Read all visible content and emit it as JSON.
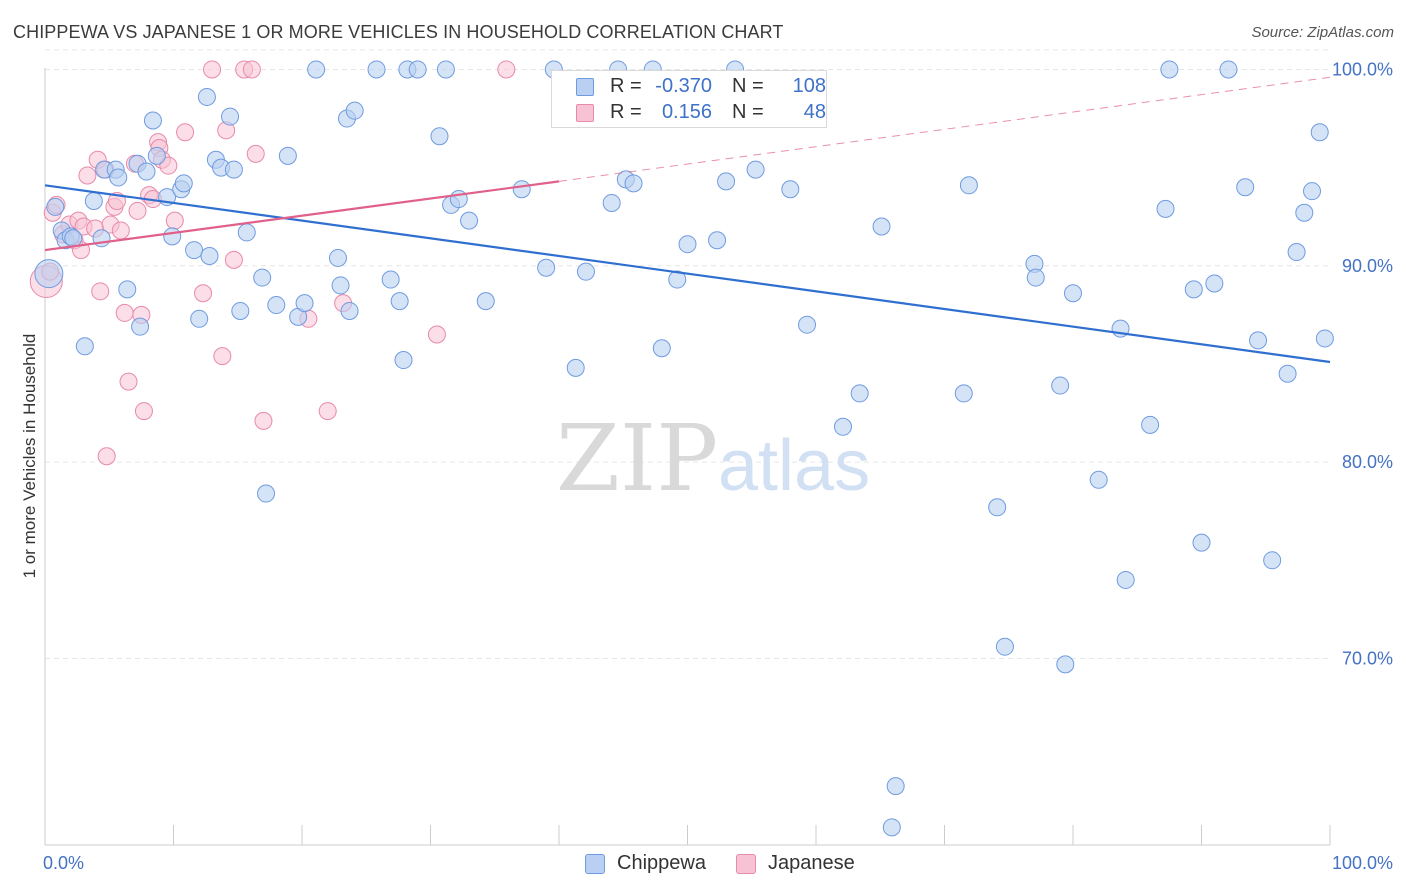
{
  "header": {
    "title": "CHIPPEWA VS JAPANESE 1 OR MORE VEHICLES IN HOUSEHOLD CORRELATION CHART",
    "source": "Source: ZipAtlas.com"
  },
  "legend": {
    "rows": [
      {
        "r_label": "R =",
        "r_value": "-0.370",
        "n_label": "N =",
        "n_value": "108"
      },
      {
        "r_label": "R =",
        "r_value": "0.156",
        "n_label": "N =",
        "n_value": "48"
      }
    ]
  },
  "watermark": {
    "zip": "ZIP",
    "atlas": "atlas"
  },
  "colors": {
    "chippewa_fill": "#b9d0f2",
    "chippewa_stroke": "#6f9be0",
    "chippewa_line": "#2f6fd0",
    "japanese_fill": "#f7c3d4",
    "japanese_stroke": "#e88aaa",
    "japanese_line": "#e0608a",
    "tick_label": "#4472c4",
    "grid": "#e6e6e6"
  },
  "chart_data": {
    "type": "scatter",
    "title": "CHIPPEWA VS JAPANESE 1 OR MORE VEHICLES IN HOUSEHOLD CORRELATION CHART",
    "xlabel": "",
    "ylabel": "1 or more Vehicles in Household",
    "xlim": [
      0,
      100
    ],
    "ylim": [
      60.5,
      101.5
    ],
    "x_tick_labels": [
      "0.0%",
      "100.0%"
    ],
    "y_ticks": [
      70,
      80,
      90,
      100
    ],
    "y_tick_labels": [
      "70.0%",
      "80.0%",
      "90.0%",
      "100.0%"
    ],
    "grid": true,
    "legend_position": "top-center",
    "series": [
      {
        "name": "Chippewa",
        "r": -0.37,
        "n": 108,
        "trend": {
          "x": [
            0,
            100
          ],
          "y": [
            94.1,
            85.1
          ]
        },
        "points": [
          [
            0.3,
            89.6
          ],
          [
            0.8,
            93.0
          ],
          [
            1.3,
            91.8
          ],
          [
            1.6,
            91.3
          ],
          [
            2.0,
            91.5
          ],
          [
            2.2,
            91.4
          ],
          [
            3.1,
            85.9
          ],
          [
            3.8,
            93.3
          ],
          [
            4.4,
            91.4
          ],
          [
            4.6,
            94.9
          ],
          [
            5.5,
            94.9
          ],
          [
            5.7,
            94.5
          ],
          [
            6.4,
            88.8
          ],
          [
            7.2,
            95.2
          ],
          [
            7.4,
            86.9
          ],
          [
            7.9,
            94.8
          ],
          [
            8.4,
            97.4
          ],
          [
            8.7,
            95.6
          ],
          [
            9.5,
            93.5
          ],
          [
            9.9,
            91.5
          ],
          [
            10.6,
            93.9
          ],
          [
            10.8,
            94.2
          ],
          [
            11.6,
            90.8
          ],
          [
            12.0,
            87.3
          ],
          [
            12.6,
            98.6
          ],
          [
            12.8,
            90.5
          ],
          [
            13.3,
            95.4
          ],
          [
            13.7,
            95.0
          ],
          [
            14.4,
            97.6
          ],
          [
            14.7,
            94.9
          ],
          [
            15.2,
            87.7
          ],
          [
            15.7,
            91.7
          ],
          [
            16.9,
            89.4
          ],
          [
            17.2,
            78.4
          ],
          [
            18.0,
            88.0
          ],
          [
            18.9,
            95.6
          ],
          [
            19.7,
            87.4
          ],
          [
            20.2,
            88.1
          ],
          [
            21.1,
            100.0
          ],
          [
            22.8,
            90.4
          ],
          [
            23.0,
            89.0
          ],
          [
            23.5,
            97.5
          ],
          [
            23.7,
            87.7
          ],
          [
            24.1,
            97.9
          ],
          [
            25.8,
            100.0
          ],
          [
            26.9,
            89.3
          ],
          [
            27.6,
            88.2
          ],
          [
            27.9,
            85.2
          ],
          [
            28.2,
            100.0
          ],
          [
            29.0,
            100.0
          ],
          [
            30.7,
            96.6
          ],
          [
            31.2,
            100.0
          ],
          [
            31.6,
            93.1
          ],
          [
            32.2,
            93.4
          ],
          [
            33.0,
            92.3
          ],
          [
            34.3,
            88.2
          ],
          [
            37.1,
            93.9
          ],
          [
            39.0,
            89.9
          ],
          [
            39.6,
            100.0
          ],
          [
            41.3,
            84.8
          ],
          [
            42.1,
            89.7
          ],
          [
            44.1,
            93.2
          ],
          [
            44.6,
            100.0
          ],
          [
            45.2,
            94.4
          ],
          [
            45.8,
            94.2
          ],
          [
            47.3,
            100.0
          ],
          [
            48.0,
            85.8
          ],
          [
            49.2,
            89.3
          ],
          [
            50.0,
            91.1
          ],
          [
            52.3,
            91.3
          ],
          [
            53.0,
            94.3
          ],
          [
            53.7,
            100.0
          ],
          [
            55.3,
            94.9
          ],
          [
            58.0,
            93.9
          ],
          [
            59.3,
            87.0
          ],
          [
            62.1,
            81.8
          ],
          [
            63.4,
            83.5
          ],
          [
            65.1,
            92.0
          ],
          [
            65.9,
            61.4
          ],
          [
            66.2,
            63.5
          ],
          [
            71.5,
            83.5
          ],
          [
            71.9,
            94.1
          ],
          [
            74.1,
            77.7
          ],
          [
            74.7,
            70.6
          ],
          [
            77.0,
            90.1
          ],
          [
            77.1,
            89.4
          ],
          [
            79.0,
            83.9
          ],
          [
            79.4,
            69.7
          ],
          [
            80.0,
            88.6
          ],
          [
            82.0,
            79.1
          ],
          [
            83.7,
            86.8
          ],
          [
            84.1,
            74.0
          ],
          [
            86.0,
            81.9
          ],
          [
            87.2,
            92.9
          ],
          [
            87.5,
            100.0
          ],
          [
            90.0,
            75.9
          ],
          [
            91.0,
            89.1
          ],
          [
            92.1,
            100.0
          ],
          [
            93.4,
            94.0
          ],
          [
            94.4,
            86.2
          ],
          [
            95.5,
            75.0
          ],
          [
            96.7,
            84.5
          ],
          [
            97.4,
            90.7
          ],
          [
            98.0,
            92.7
          ],
          [
            98.6,
            93.8
          ],
          [
            99.6,
            86.3
          ],
          [
            99.2,
            96.8
          ],
          [
            89.4,
            88.8
          ]
        ]
      },
      {
        "name": "Japanese",
        "r": 0.156,
        "n": 48,
        "trend": {
          "x": [
            0,
            40
          ],
          "y": [
            90.8,
            94.3
          ]
        },
        "trend_extension": {
          "x": [
            40,
            100
          ],
          "y": [
            94.3,
            99.6
          ]
        },
        "points": [
          [
            0.1,
            89.2
          ],
          [
            0.4,
            89.7
          ],
          [
            0.6,
            92.7
          ],
          [
            0.9,
            93.1
          ],
          [
            1.4,
            91.6
          ],
          [
            1.9,
            92.1
          ],
          [
            2.3,
            91.3
          ],
          [
            2.6,
            92.3
          ],
          [
            2.8,
            90.8
          ],
          [
            3.0,
            92.0
          ],
          [
            3.3,
            94.6
          ],
          [
            3.9,
            91.9
          ],
          [
            4.1,
            95.4
          ],
          [
            4.3,
            88.7
          ],
          [
            4.7,
            94.9
          ],
          [
            4.8,
            80.3
          ],
          [
            5.1,
            92.1
          ],
          [
            5.4,
            93.0
          ],
          [
            5.6,
            93.3
          ],
          [
            5.9,
            91.8
          ],
          [
            6.2,
            87.6
          ],
          [
            6.5,
            84.1
          ],
          [
            7.0,
            95.2
          ],
          [
            7.2,
            92.8
          ],
          [
            7.5,
            87.5
          ],
          [
            7.7,
            82.6
          ],
          [
            8.1,
            93.6
          ],
          [
            8.4,
            93.4
          ],
          [
            8.8,
            96.3
          ],
          [
            8.9,
            96.0
          ],
          [
            9.1,
            95.4
          ],
          [
            9.6,
            95.1
          ],
          [
            10.1,
            92.3
          ],
          [
            10.9,
            96.8
          ],
          [
            12.3,
            88.6
          ],
          [
            13.0,
            100.0
          ],
          [
            13.8,
            85.4
          ],
          [
            14.1,
            96.9
          ],
          [
            14.7,
            90.3
          ],
          [
            15.5,
            100.0
          ],
          [
            16.1,
            100.0
          ],
          [
            16.4,
            95.7
          ],
          [
            17.0,
            82.1
          ],
          [
            20.5,
            87.3
          ],
          [
            22.0,
            82.6
          ],
          [
            23.2,
            88.1
          ],
          [
            30.5,
            86.5
          ],
          [
            35.9,
            100.0
          ]
        ]
      }
    ]
  }
}
